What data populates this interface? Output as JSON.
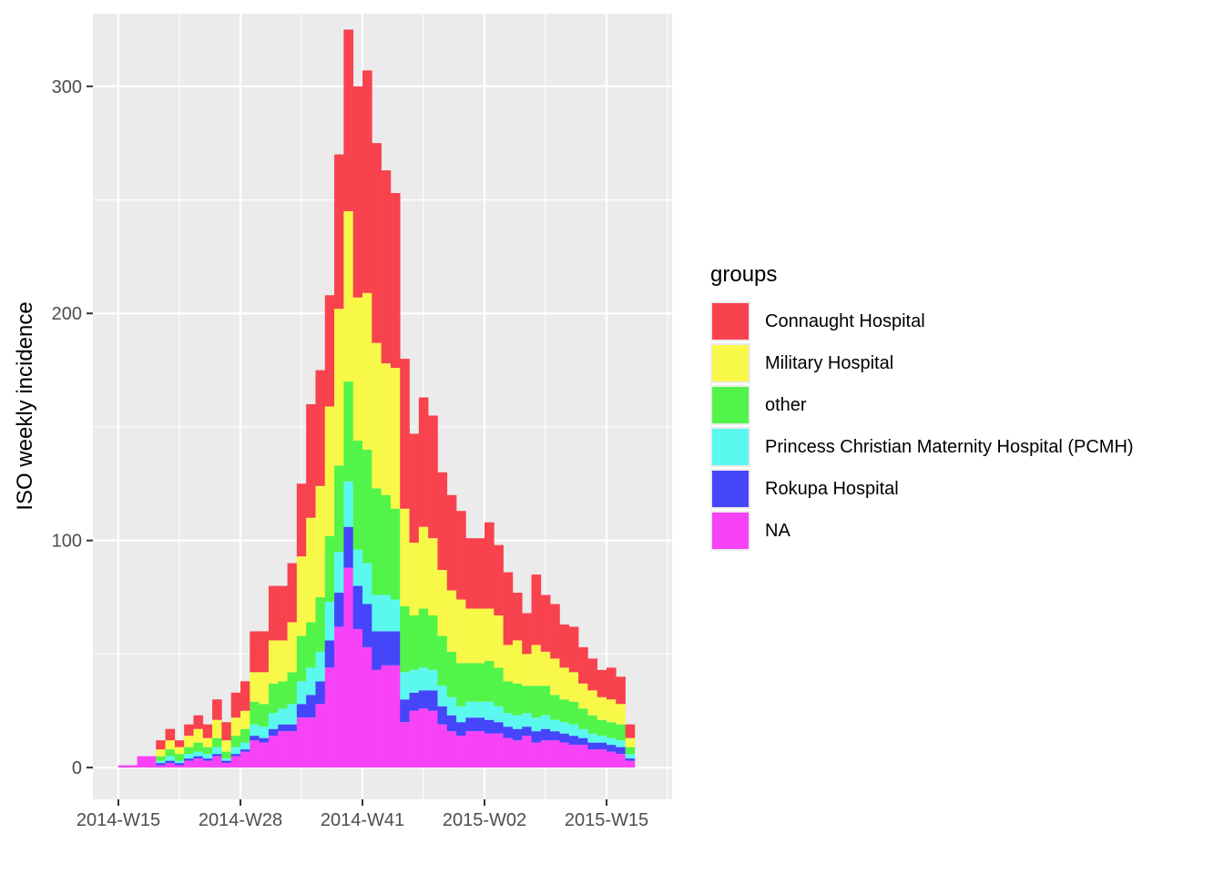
{
  "chart_data": {
    "type": "bar",
    "stacked": true,
    "title": "",
    "xlabel": "",
    "ylabel": "ISO weekly incidence",
    "ylim": [
      -14,
      332
    ],
    "yticks": [
      0,
      100,
      200,
      300
    ],
    "first_week": "2014-W15",
    "x_tick_labels": [
      "2014-W15",
      "2014-W28",
      "2014-W41",
      "2015-W02",
      "2015-W15"
    ],
    "x_tick_week_index": [
      0,
      13,
      26,
      39,
      52
    ],
    "week_start_offset": 0,
    "num_weeks": 57,
    "legend": {
      "title": "groups",
      "position": "right",
      "entries": [
        "Connaught Hospital",
        "Military Hospital",
        "other",
        "Princess Christian Maternity Hospital (PCMH)",
        "Rokupa Hospital",
        "NA"
      ]
    },
    "colors": [
      "#f8424e",
      "#f8f849",
      "#52f449",
      "#5bf8f0",
      "#4545f9",
      "#f842f8"
    ],
    "grid": true,
    "series_totals": [
      1,
      1,
      5,
      5,
      12,
      17,
      12,
      19,
      23,
      19,
      30,
      20,
      33,
      38,
      60,
      60,
      80,
      80,
      90,
      125,
      160,
      175,
      208,
      270,
      325,
      300,
      307,
      275,
      263,
      253,
      180,
      147,
      163,
      155,
      130,
      120,
      113,
      101,
      101,
      108,
      98,
      86,
      77,
      68,
      85,
      76,
      72,
      63,
      62,
      53,
      48,
      43,
      44,
      40,
      19,
      0,
      0
    ],
    "series": [
      {
        "name": "Connaught Hospital",
        "values": [
          0,
          0,
          0,
          0,
          4,
          5,
          3,
          5,
          6,
          6,
          9,
          8,
          11,
          13,
          18,
          18,
          24,
          24,
          26,
          32,
          50,
          51,
          49,
          68,
          80,
          93,
          98,
          88,
          85,
          77,
          66,
          48,
          57,
          54,
          43,
          42,
          39,
          31,
          31,
          38,
          31,
          32,
          21,
          18,
          31,
          25,
          24,
          19,
          20,
          16,
          14,
          12,
          14,
          12,
          6,
          0,
          0
        ]
      },
      {
        "name": "Military Hospital",
        "values": [
          0,
          0,
          0,
          0,
          3,
          4,
          3,
          5,
          6,
          4,
          8,
          5,
          8,
          8,
          13,
          14,
          19,
          18,
          22,
          35,
          46,
          49,
          57,
          69,
          75,
          63,
          69,
          64,
          58,
          62,
          43,
          32,
          36,
          34,
          29,
          27,
          28,
          24,
          24,
          23,
          23,
          16,
          19,
          14,
          18,
          15,
          16,
          14,
          13,
          11,
          11,
          10,
          10,
          9,
          4,
          0,
          0
        ]
      },
      {
        "name": "other",
        "values": [
          0,
          0,
          0,
          0,
          2,
          3,
          3,
          3,
          4,
          3,
          4,
          3,
          5,
          6,
          10,
          10,
          13,
          12,
          14,
          20,
          20,
          24,
          29,
          38,
          44,
          48,
          50,
          47,
          44,
          40,
          29,
          24,
          26,
          24,
          22,
          20,
          19,
          17,
          17,
          18,
          17,
          14,
          14,
          12,
          14,
          13,
          11,
          10,
          10,
          9,
          8,
          7,
          7,
          7,
          3,
          0,
          0
        ]
      },
      {
        "name": "Princess Christian Maternity Hospital (PCMH)",
        "values": [
          0,
          0,
          0,
          0,
          1,
          2,
          1,
          2,
          2,
          2,
          3,
          1,
          3,
          3,
          5,
          5,
          7,
          7,
          9,
          10,
          12,
          13,
          17,
          18,
          20,
          16,
          18,
          16,
          16,
          14,
          12,
          10,
          10,
          9,
          9,
          8,
          7,
          7,
          7,
          8,
          7,
          6,
          6,
          6,
          6,
          6,
          5,
          5,
          5,
          4,
          4,
          3,
          3,
          3,
          2,
          0,
          0
        ]
      },
      {
        "name": "Rokupa Hospital",
        "values": [
          0,
          0,
          0,
          0,
          1,
          1,
          1,
          1,
          1,
          1,
          1,
          1,
          1,
          1,
          2,
          2,
          3,
          3,
          3,
          6,
          10,
          10,
          12,
          15,
          18,
          19,
          19,
          17,
          15,
          15,
          10,
          8,
          8,
          9,
          8,
          7,
          6,
          6,
          6,
          6,
          5,
          5,
          5,
          4,
          5,
          5,
          4,
          4,
          4,
          3,
          3,
          3,
          3,
          3,
          1,
          0,
          0
        ]
      },
      {
        "name": "NA",
        "values": [
          1,
          1,
          5,
          5,
          1,
          2,
          1,
          3,
          4,
          3,
          5,
          2,
          5,
          7,
          12,
          11,
          14,
          16,
          16,
          22,
          22,
          28,
          44,
          62,
          88,
          61,
          53,
          43,
          45,
          45,
          20,
          25,
          26,
          25,
          19,
          16,
          14,
          16,
          16,
          15,
          15,
          13,
          12,
          14,
          11,
          12,
          12,
          11,
          10,
          10,
          8,
          8,
          7,
          6,
          3,
          0,
          0
        ]
      }
    ]
  }
}
